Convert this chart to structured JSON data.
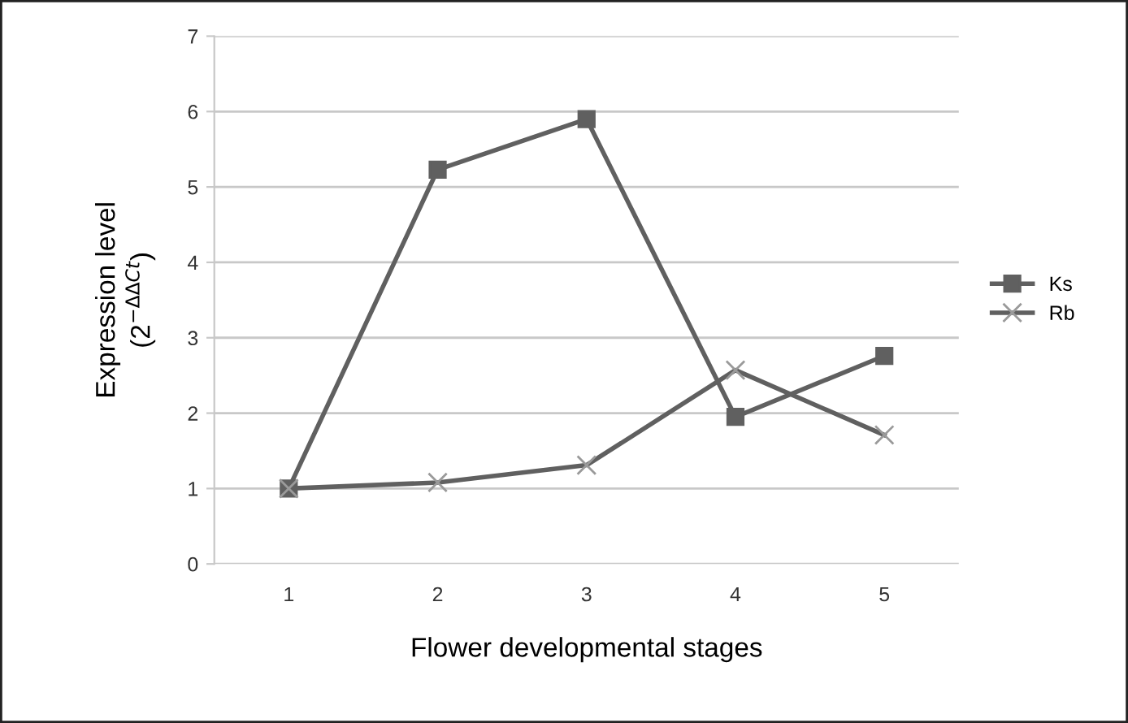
{
  "chart_data": {
    "type": "line",
    "xlabel": "Flower developmental stages",
    "ylabel": "Expression level\n(2$^{−ΔΔCt}$)",
    "categories": [
      "1",
      "2",
      "3",
      "4",
      "5"
    ],
    "series": [
      {
        "name": "Ks",
        "color": "#606060",
        "marker": "square",
        "values": [
          1.0,
          5.23,
          5.9,
          1.95,
          2.76
        ]
      },
      {
        "name": "Rb",
        "color": "#606060",
        "marker": "cross",
        "values": [
          1.0,
          1.08,
          1.31,
          2.57,
          1.71
        ]
      }
    ],
    "ylim": [
      0,
      7
    ],
    "yticks": [
      0,
      1,
      2,
      3,
      4,
      5,
      6,
      7
    ],
    "grid": "y",
    "legend": "right",
    "line_style": "solid"
  }
}
